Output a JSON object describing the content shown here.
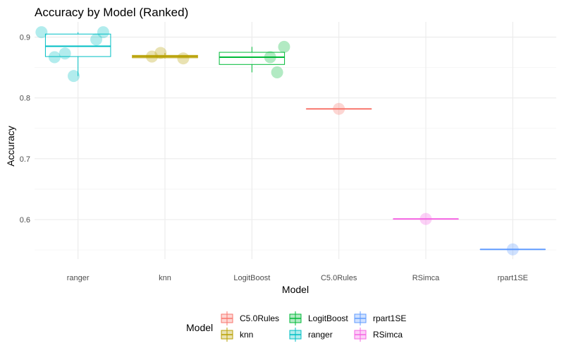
{
  "chart_data": {
    "type": "boxplot",
    "title": "Accuracy by Model (Ranked)",
    "xlabel": "Model",
    "ylabel": "Accuracy",
    "ylim": [
      0.535,
      0.925
    ],
    "yticks": [
      0.6,
      0.7,
      0.8,
      0.9
    ],
    "ytick_labels": [
      "0.6",
      "0.7",
      "0.8",
      "0.9"
    ],
    "grid": true,
    "legend_position": "bottom",
    "legend_title": "Model",
    "categories": [
      "ranger",
      "knn",
      "LogitBoost",
      "C5.0Rules",
      "RSimca",
      "rpart1SE"
    ],
    "series": [
      {
        "name": "ranger",
        "color": "#00BFC4",
        "box": {
          "min": 0.836,
          "q1": 0.868,
          "median": 0.885,
          "q3": 0.905,
          "max": 0.908
        },
        "points": [
          0.908,
          0.867,
          0.873,
          0.836,
          0.896,
          0.908
        ]
      },
      {
        "name": "knn",
        "color": "#B79F00",
        "box": {
          "min": 0.865,
          "q1": 0.866,
          "median": 0.868,
          "q3": 0.87,
          "max": 0.874
        },
        "points": [
          0.868,
          0.874,
          0.865
        ]
      },
      {
        "name": "LogitBoost",
        "color": "#00BA38",
        "box": {
          "min": 0.842,
          "q1": 0.855,
          "median": 0.867,
          "q3": 0.875,
          "max": 0.884
        },
        "points": [
          0.867,
          0.842,
          0.884
        ]
      },
      {
        "name": "C5.0Rules",
        "color": "#F8766D",
        "box": {
          "min": 0.782,
          "q1": 0.782,
          "median": 0.782,
          "q3": 0.782,
          "max": 0.782
        },
        "points": [
          0.782
        ]
      },
      {
        "name": "RSimca",
        "color": "#F564E3",
        "box": {
          "min": 0.601,
          "q1": 0.601,
          "median": 0.601,
          "q3": 0.601,
          "max": 0.601
        },
        "points": [
          0.601
        ]
      },
      {
        "name": "rpart1SE",
        "color": "#619CFF",
        "box": {
          "min": 0.551,
          "q1": 0.551,
          "median": 0.551,
          "q3": 0.551,
          "max": 0.551
        },
        "points": [
          0.551
        ]
      }
    ],
    "legend_entries": [
      [
        "C5.0Rules",
        "knn"
      ],
      [
        "LogitBoost",
        "ranger"
      ],
      [
        "rpart1SE",
        "RSimca"
      ]
    ]
  }
}
